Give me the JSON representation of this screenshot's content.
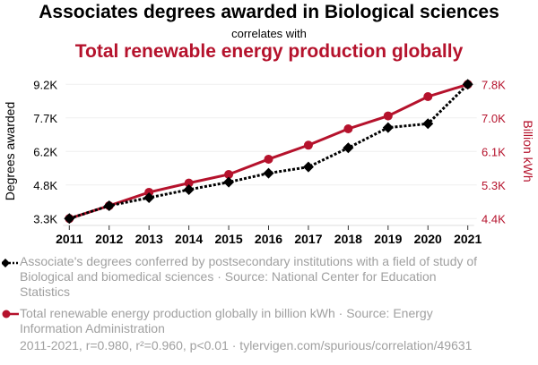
{
  "header": {
    "title": "Associates degrees awarded in Biological sciences",
    "subtitle": "correlates with",
    "title2": "Total renewable energy production globally"
  },
  "colors": {
    "series1": "#000000",
    "series2": "#b5122c",
    "grid": "#efefef",
    "legend_text": "#a0a0a0"
  },
  "chart_data": {
    "type": "line",
    "x": [
      2011,
      2012,
      2013,
      2014,
      2015,
      2016,
      2017,
      2018,
      2019,
      2020,
      2021
    ],
    "xtick_labels": [
      "2011",
      "2012",
      "2013",
      "2014",
      "2015",
      "2016",
      "2017",
      "2018",
      "2019",
      "2020",
      "2021"
    ],
    "series": [
      {
        "name": "Associate's degrees conferred by postsecondary institutions with a field of study of Biological and biomedical sciences",
        "axis": "left",
        "marker": "diamond",
        "style": "dotted",
        "values": [
          3300,
          3864,
          4218,
          4572,
          4900,
          5293,
          5568,
          6407,
          7298,
          7469,
          9200
        ]
      },
      {
        "name": "Total renewable energy production globally in billion kWh",
        "axis": "right",
        "marker": "circle",
        "style": "solid",
        "values": [
          4400,
          4725,
          5065,
          5299,
          5518,
          5904,
          6259,
          6674,
          7000,
          7490,
          7800
        ]
      }
    ],
    "ylabel_left": "Degrees awarded",
    "ylabel_right": "Billion kWh",
    "ylim_left": [
      3300,
      9200
    ],
    "ylim_right": [
      4400,
      7800
    ],
    "yticks_left": [
      "3.3K",
      "4.8K",
      "6.2K",
      "7.7K",
      "9.2K"
    ],
    "yticks_right": [
      "4.4K",
      "5.3K",
      "6.1K",
      "7.0K",
      "7.8K"
    ],
    "grid": true,
    "legend_placement": "bottom"
  },
  "legend": {
    "item1": "Associate's degrees conferred by postsecondary institutions with a field of study of Biological and biomedical sciences · Source: National Center for Education Statistics",
    "item2": "Total renewable energy production globally in billion kWh · Source: Energy Information Administration"
  },
  "footer": "2011-2021, r=0.980, r²=0.960, p<0.01 · tylervigen.com/spurious/correlation/49631"
}
